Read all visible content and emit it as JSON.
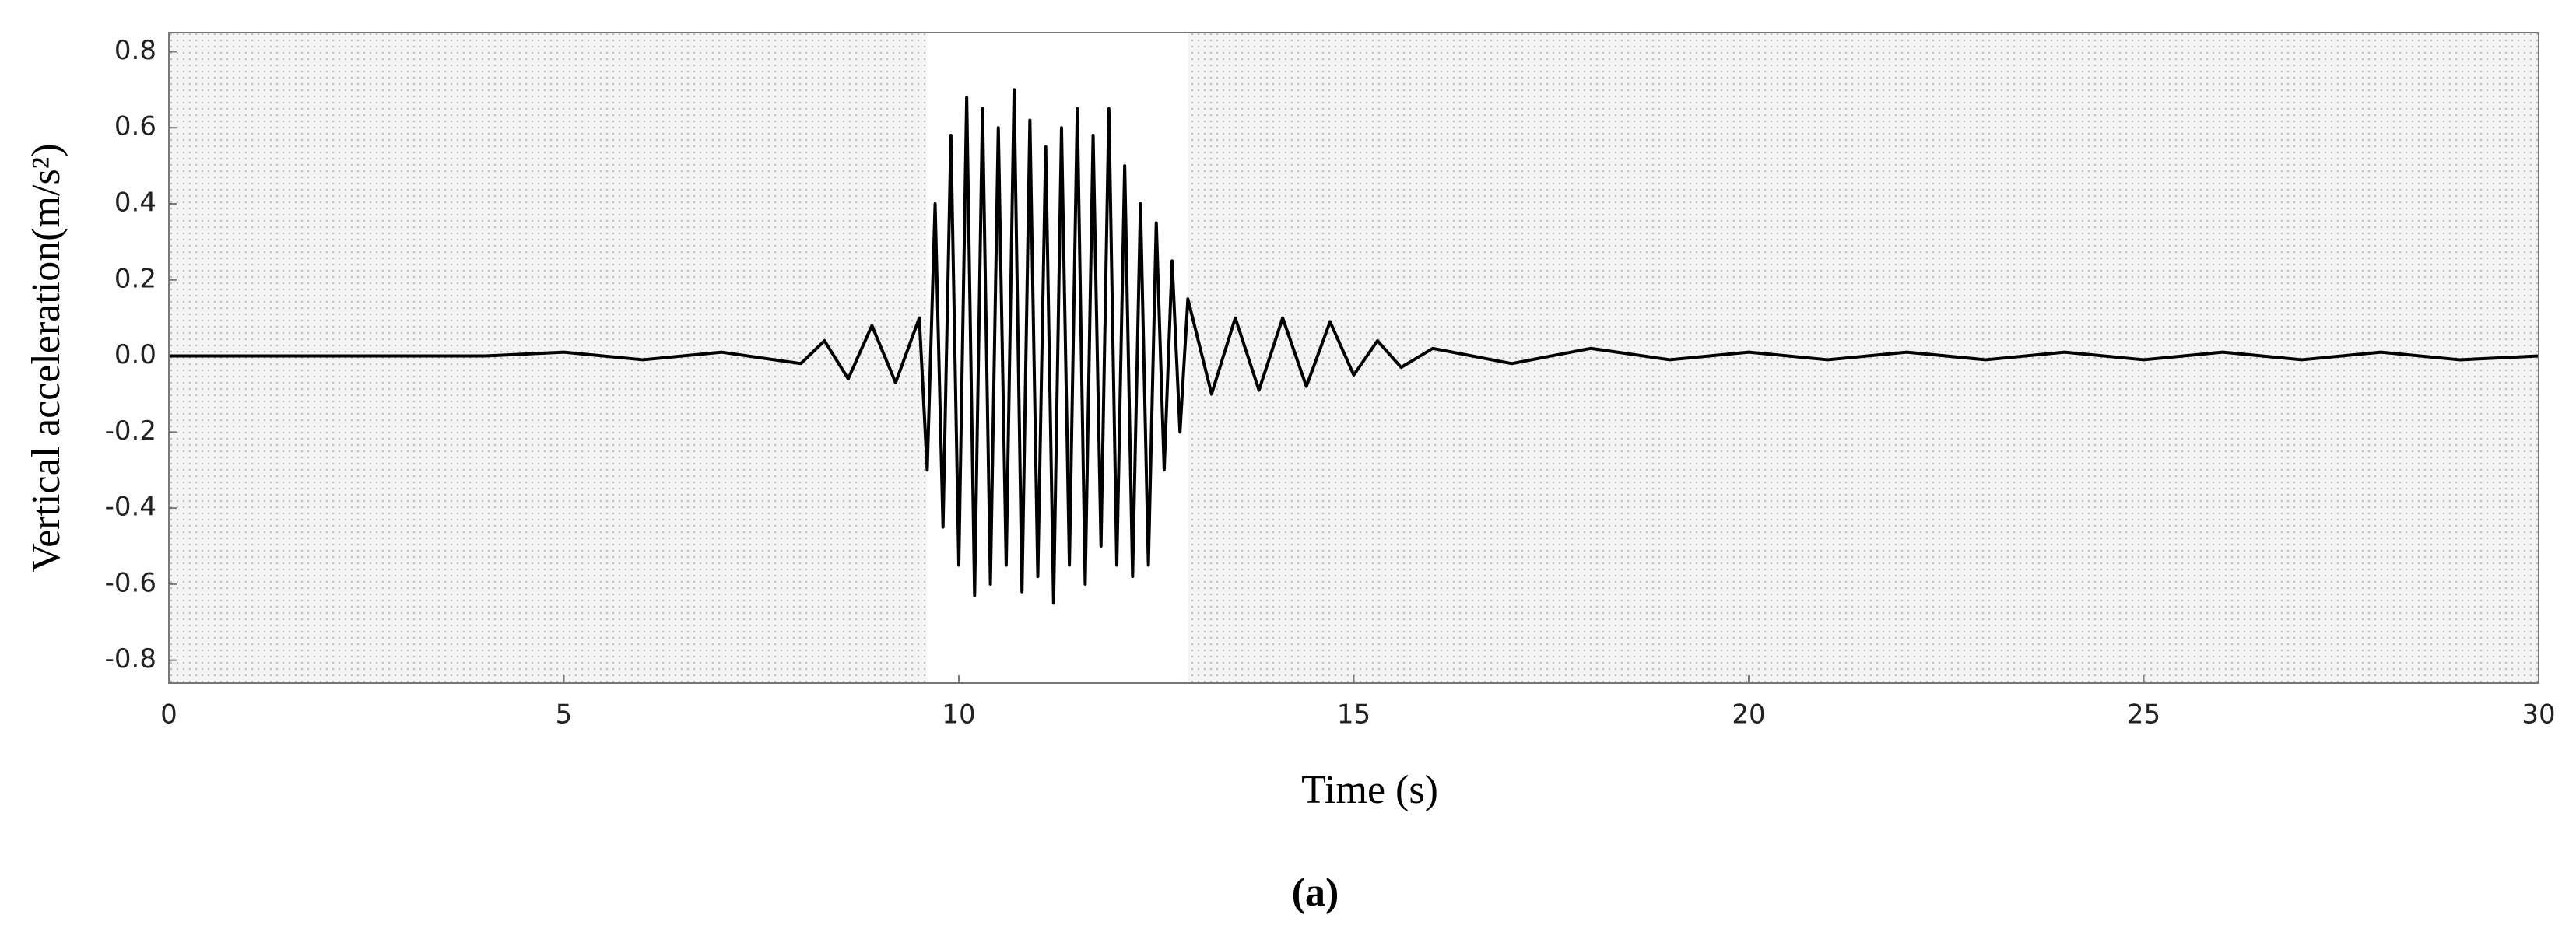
{
  "chart_data": {
    "type": "line",
    "x_label": "Time (s)",
    "y_label": "Vertical acceleration(m/s²)",
    "caption": "(a)",
    "color": "#000000",
    "highlight_x": [
      9.6,
      12.9
    ],
    "x": [
      0,
      4,
      5,
      6,
      7,
      8,
      8.3,
      8.6,
      8.9,
      9.2,
      9.5,
      9.6,
      9.7,
      9.8,
      9.9,
      10.0,
      10.1,
      10.2,
      10.3,
      10.4,
      10.5,
      10.6,
      10.7,
      10.8,
      10.9,
      11.0,
      11.1,
      11.2,
      11.3,
      11.4,
      11.5,
      11.6,
      11.7,
      11.8,
      11.9,
      12.0,
      12.1,
      12.2,
      12.3,
      12.4,
      12.5,
      12.6,
      12.7,
      12.8,
      12.9,
      13.2,
      13.5,
      13.8,
      14.1,
      14.4,
      14.7,
      15.0,
      15.3,
      15.6,
      16,
      17,
      18,
      19,
      20,
      21,
      22,
      23,
      24,
      25,
      26,
      27,
      28,
      29,
      30
    ],
    "values": [
      0,
      0,
      0.01,
      -0.01,
      0.01,
      -0.02,
      0.04,
      -0.06,
      0.08,
      -0.07,
      0.1,
      -0.3,
      0.4,
      -0.45,
      0.58,
      -0.55,
      0.68,
      -0.63,
      0.65,
      -0.6,
      0.6,
      -0.55,
      0.7,
      -0.62,
      0.62,
      -0.58,
      0.55,
      -0.65,
      0.6,
      -0.55,
      0.65,
      -0.6,
      0.58,
      -0.5,
      0.65,
      -0.55,
      0.5,
      -0.58,
      0.4,
      -0.55,
      0.35,
      -0.3,
      0.25,
      -0.2,
      0.15,
      -0.1,
      0.1,
      -0.09,
      0.1,
      -0.08,
      0.09,
      -0.05,
      0.04,
      -0.03,
      0.02,
      -0.02,
      0.02,
      -0.01,
      0.01,
      -0.01,
      0.01,
      -0.01,
      0.01,
      -0.01,
      0.01,
      -0.01,
      0.01,
      -0.01,
      0
    ],
    "xlim": [
      0,
      30
    ],
    "xticks": [
      0,
      5,
      10,
      15,
      20,
      25,
      30
    ],
    "ylim": [
      -0.86,
      0.85
    ],
    "yticks": [
      0.8,
      0.6,
      0.4,
      0.2,
      {
        "value": 0,
        "label": "0.0"
      },
      -0.2,
      -0.4,
      -0.6,
      -0.8
    ]
  }
}
